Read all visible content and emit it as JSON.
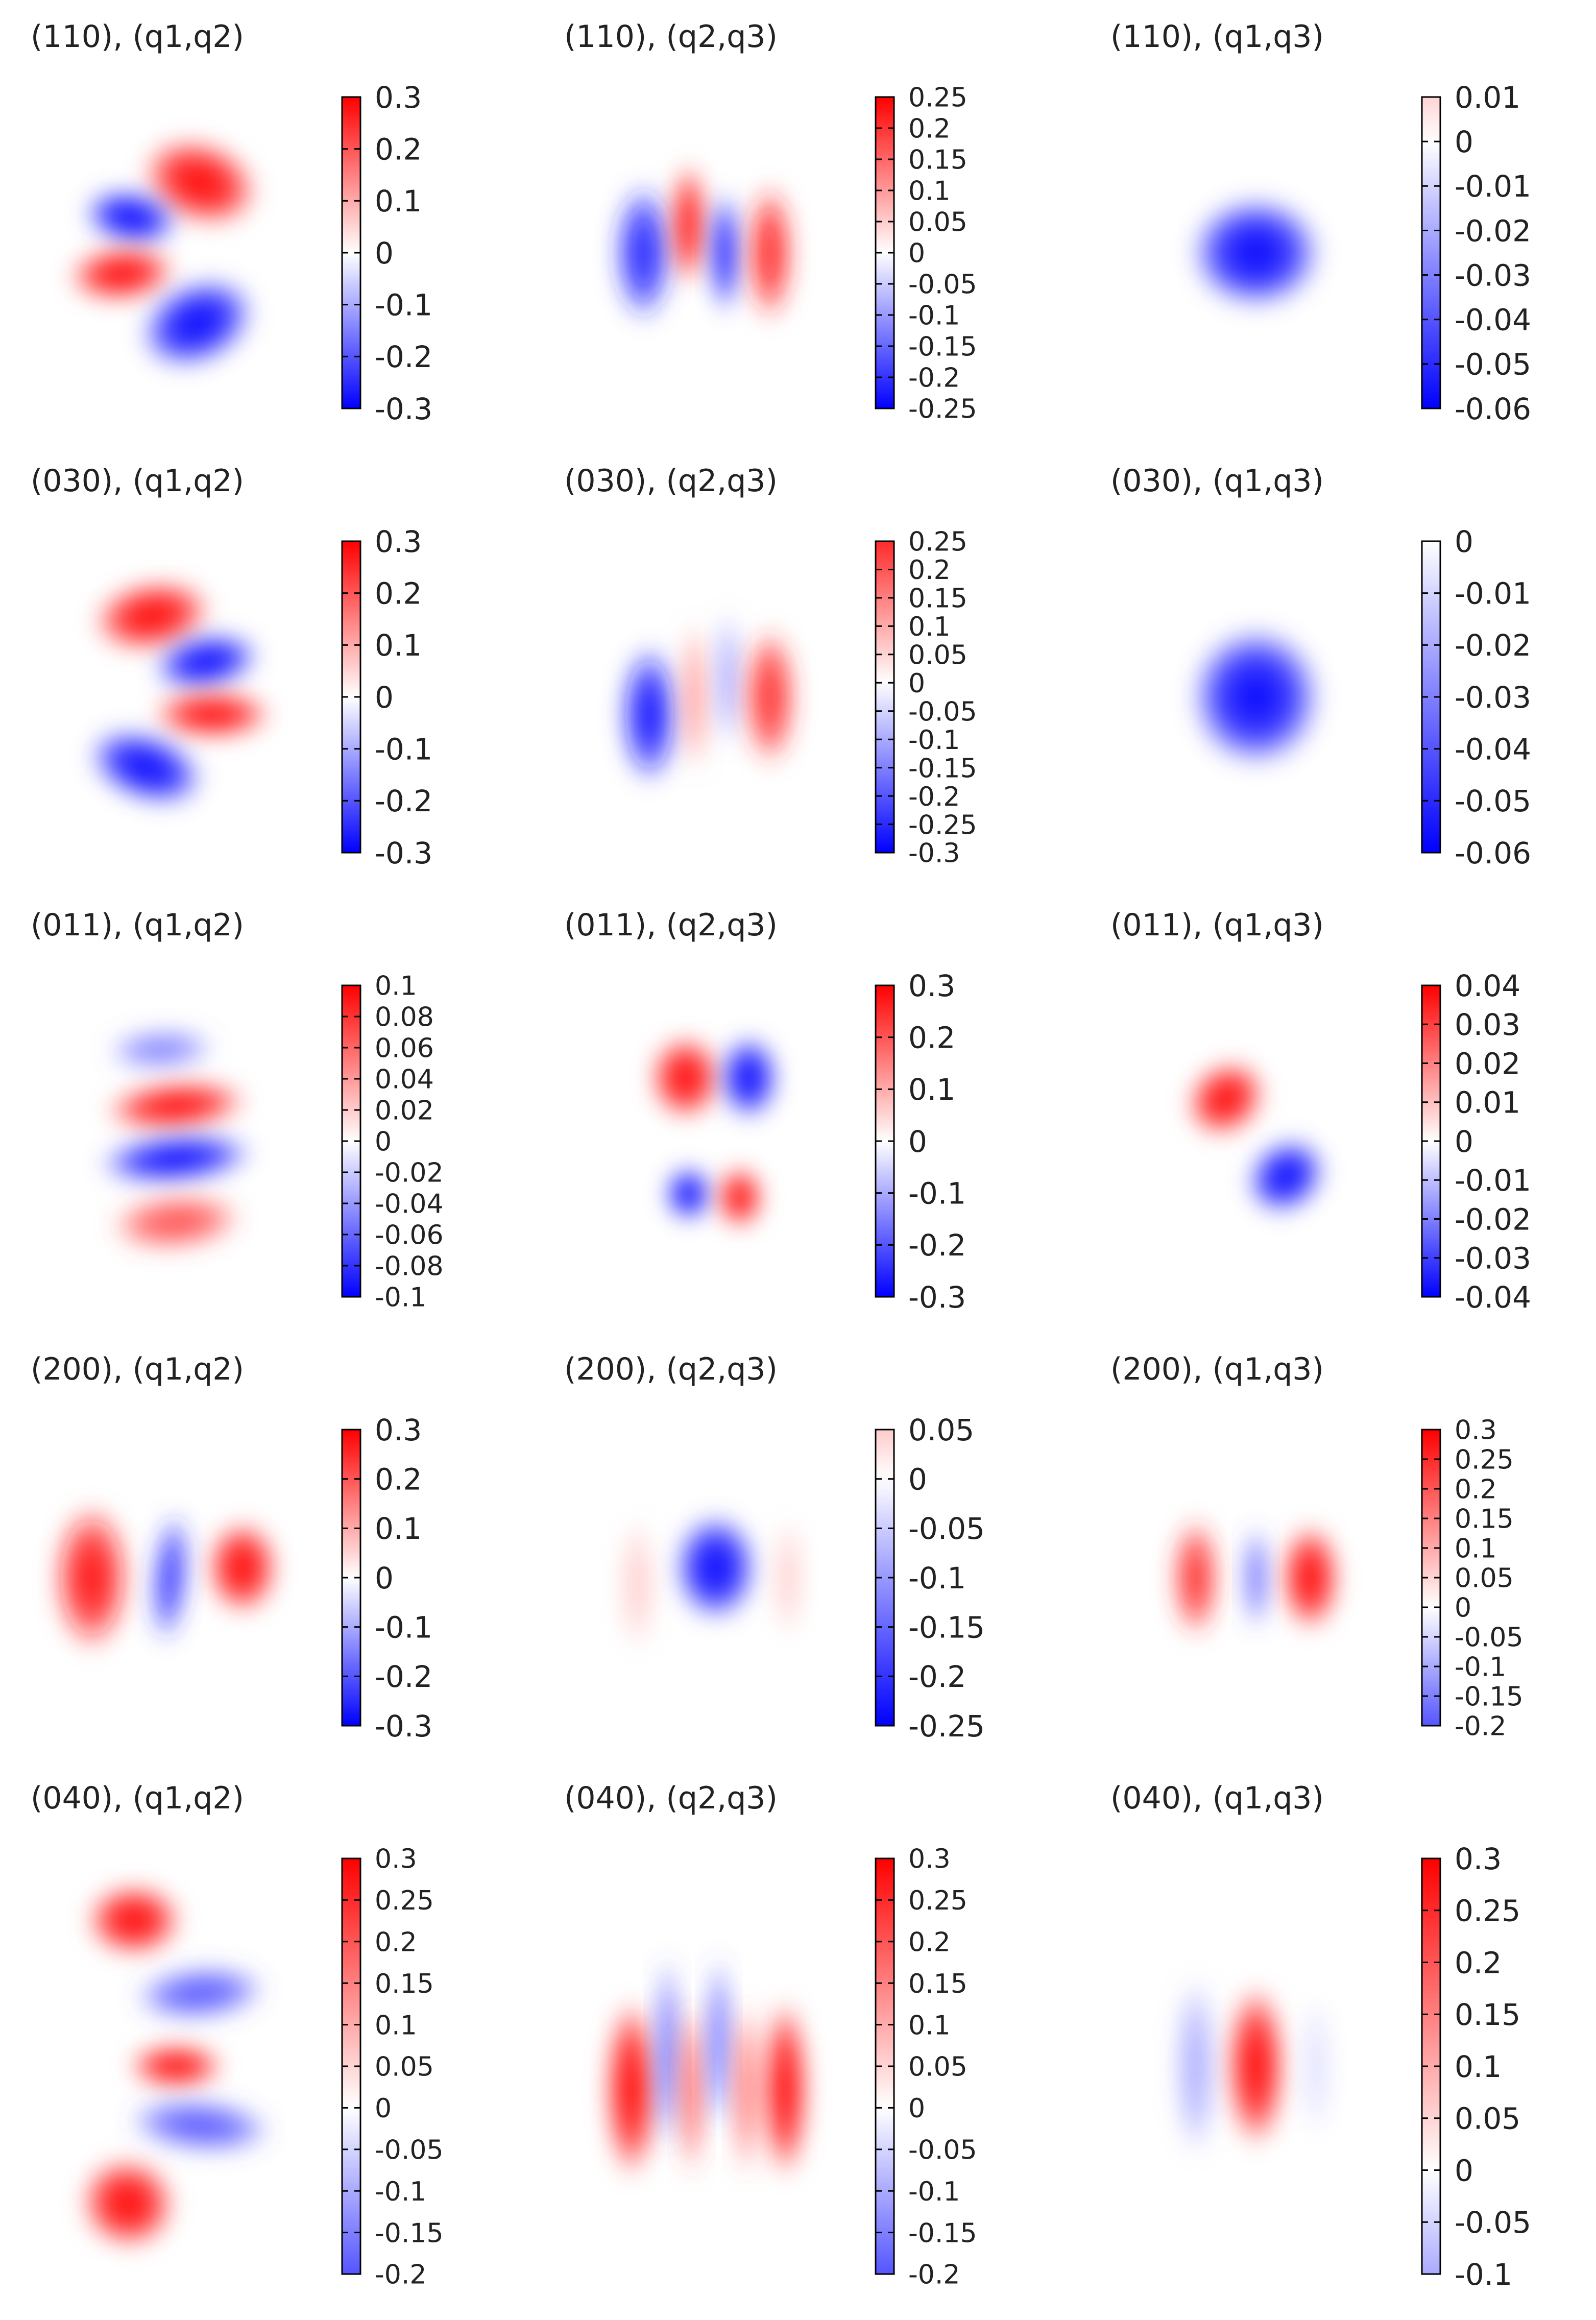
{
  "chart_data": [
    {
      "type": "heatmap",
      "title": "(110), (q1,q2)",
      "colorbar": {
        "range": [
          -0.3,
          0.3
        ],
        "ticks": [
          "0.3",
          "0.2",
          "0.1",
          "0",
          "-0.1",
          "-0.2",
          "-0.3"
        ]
      },
      "blobs": [
        {
          "x": 0.58,
          "y": 0.3,
          "sx": 0.2,
          "sy": 0.12,
          "a": 0.3,
          "rot": 20
        },
        {
          "x": 0.35,
          "y": 0.4,
          "sx": 0.16,
          "sy": 0.08,
          "a": -0.3,
          "rot": 10
        },
        {
          "x": 0.32,
          "y": 0.56,
          "sx": 0.18,
          "sy": 0.08,
          "a": 0.3,
          "rot": -5
        },
        {
          "x": 0.57,
          "y": 0.7,
          "sx": 0.2,
          "sy": 0.12,
          "a": -0.3,
          "rot": -25
        }
      ]
    },
    {
      "type": "heatmap",
      "title": "(110), (q2,q3)",
      "colorbar": {
        "range": [
          -0.25,
          0.25
        ],
        "ticks": [
          "0.25",
          "0.2",
          "0.15",
          "0.1",
          "0.05",
          "0",
          "-0.05",
          "-0.1",
          "-0.15",
          "-0.2",
          "-0.25"
        ]
      },
      "blobs": [
        {
          "x": 0.28,
          "y": 0.5,
          "sx": 0.1,
          "sy": 0.2,
          "a": -0.22,
          "rot": 0
        },
        {
          "x": 0.43,
          "y": 0.42,
          "sx": 0.06,
          "sy": 0.18,
          "a": 0.25,
          "rot": 0
        },
        {
          "x": 0.55,
          "y": 0.5,
          "sx": 0.05,
          "sy": 0.18,
          "a": -0.25,
          "rot": 0
        },
        {
          "x": 0.7,
          "y": 0.5,
          "sx": 0.08,
          "sy": 0.2,
          "a": 0.22,
          "rot": 0
        }
      ]
    },
    {
      "type": "heatmap",
      "title": "(110), (q1,q3)",
      "colorbar": {
        "range": [
          -0.06,
          0.01
        ],
        "ticks": [
          "0.01",
          "0",
          "-0.01",
          "-0.02",
          "-0.03",
          "-0.04",
          "-0.05",
          "-0.06"
        ]
      },
      "blobs": [
        {
          "x": 0.5,
          "y": 0.5,
          "sx": 0.22,
          "sy": 0.16,
          "a": -0.06,
          "rot": 0
        }
      ]
    },
    {
      "type": "heatmap",
      "title": "(030), (q1,q2)",
      "colorbar": {
        "range": [
          -0.3,
          0.3
        ],
        "ticks": [
          "0.3",
          "0.2",
          "0.1",
          "0",
          "-0.1",
          "-0.2",
          "-0.3"
        ]
      },
      "blobs": [
        {
          "x": 0.42,
          "y": 0.27,
          "sx": 0.2,
          "sy": 0.1,
          "a": 0.3,
          "rot": -10
        },
        {
          "x": 0.6,
          "y": 0.4,
          "sx": 0.18,
          "sy": 0.08,
          "a": -0.3,
          "rot": -10
        },
        {
          "x": 0.62,
          "y": 0.55,
          "sx": 0.2,
          "sy": 0.07,
          "a": 0.3,
          "rot": 0
        },
        {
          "x": 0.4,
          "y": 0.7,
          "sx": 0.2,
          "sy": 0.1,
          "a": -0.3,
          "rot": 20
        }
      ]
    },
    {
      "type": "heatmap",
      "title": "(030), (q2,q3)",
      "colorbar": {
        "range": [
          -0.3,
          0.25
        ],
        "ticks": [
          "0.25",
          "0.2",
          "0.15",
          "0.1",
          "0.05",
          "0",
          "-0.05",
          "-0.1",
          "-0.15",
          "-0.2",
          "-0.25",
          "-0.3"
        ]
      },
      "blobs": [
        {
          "x": 0.3,
          "y": 0.55,
          "sx": 0.1,
          "sy": 0.2,
          "a": -0.28,
          "rot": 0
        },
        {
          "x": 0.45,
          "y": 0.5,
          "sx": 0.05,
          "sy": 0.22,
          "a": 0.12,
          "rot": 0
        },
        {
          "x": 0.56,
          "y": 0.45,
          "sx": 0.04,
          "sy": 0.2,
          "a": -0.12,
          "rot": 0
        },
        {
          "x": 0.7,
          "y": 0.5,
          "sx": 0.09,
          "sy": 0.2,
          "a": 0.25,
          "rot": 0
        }
      ]
    },
    {
      "type": "heatmap",
      "title": "(030), (q1,q3)",
      "colorbar": {
        "range": [
          -0.06,
          0
        ],
        "ticks": [
          "0",
          "-0.01",
          "-0.02",
          "-0.03",
          "-0.04",
          "-0.05",
          "-0.06"
        ]
      },
      "blobs": [
        {
          "x": 0.5,
          "y": 0.5,
          "sx": 0.22,
          "sy": 0.2,
          "a": -0.06,
          "rot": 0
        }
      ]
    },
    {
      "type": "heatmap",
      "title": "(011), (q1,q2)",
      "colorbar": {
        "range": [
          -0.1,
          0.1
        ],
        "ticks": [
          "0.1",
          "0.08",
          "0.06",
          "0.04",
          "0.02",
          "0",
          "-0.02",
          "-0.04",
          "-0.06",
          "-0.08",
          "-0.1"
        ]
      },
      "blobs": [
        {
          "x": 0.45,
          "y": 0.24,
          "sx": 0.18,
          "sy": 0.06,
          "a": -0.05,
          "rot": -3
        },
        {
          "x": 0.5,
          "y": 0.4,
          "sx": 0.24,
          "sy": 0.07,
          "a": 0.1,
          "rot": -5
        },
        {
          "x": 0.5,
          "y": 0.55,
          "sx": 0.26,
          "sy": 0.07,
          "a": -0.1,
          "rot": -5
        },
        {
          "x": 0.5,
          "y": 0.73,
          "sx": 0.22,
          "sy": 0.08,
          "a": 0.07,
          "rot": -5
        }
      ]
    },
    {
      "type": "heatmap",
      "title": "(011), (q2,q3)",
      "colorbar": {
        "range": [
          -0.3,
          0.3
        ],
        "ticks": [
          "0.3",
          "0.2",
          "0.1",
          "0",
          "-0.1",
          "-0.2",
          "-0.3"
        ]
      },
      "blobs": [
        {
          "x": 0.42,
          "y": 0.32,
          "sx": 0.12,
          "sy": 0.12,
          "a": 0.3,
          "rot": 0
        },
        {
          "x": 0.63,
          "y": 0.32,
          "sx": 0.1,
          "sy": 0.12,
          "a": -0.3,
          "rot": 0
        },
        {
          "x": 0.43,
          "y": 0.65,
          "sx": 0.08,
          "sy": 0.08,
          "a": -0.3,
          "rot": 0
        },
        {
          "x": 0.6,
          "y": 0.66,
          "sx": 0.08,
          "sy": 0.09,
          "a": 0.3,
          "rot": 0
        }
      ]
    },
    {
      "type": "heatmap",
      "title": "(011), (q1,q3)",
      "colorbar": {
        "range": [
          -0.04,
          0.04
        ],
        "ticks": [
          "0.04",
          "0.03",
          "0.02",
          "0.01",
          "0",
          "-0.01",
          "-0.02",
          "-0.03",
          "-0.04"
        ]
      },
      "blobs": [
        {
          "x": 0.4,
          "y": 0.38,
          "sx": 0.14,
          "sy": 0.1,
          "a": 0.04,
          "rot": -40
        },
        {
          "x": 0.6,
          "y": 0.6,
          "sx": 0.14,
          "sy": 0.1,
          "a": -0.04,
          "rot": -40
        }
      ]
    },
    {
      "type": "heatmap",
      "title": "(200), (q1,q2)",
      "colorbar": {
        "range": [
          -0.3,
          0.3
        ],
        "ticks": [
          "0.3",
          "0.2",
          "0.1",
          "0",
          "-0.1",
          "-0.2",
          "-0.3"
        ]
      },
      "blobs": [
        {
          "x": 0.22,
          "y": 0.5,
          "sx": 0.13,
          "sy": 0.22,
          "a": 0.28,
          "rot": 0
        },
        {
          "x": 0.48,
          "y": 0.5,
          "sx": 0.06,
          "sy": 0.2,
          "a": -0.25,
          "rot": 5
        },
        {
          "x": 0.72,
          "y": 0.47,
          "sx": 0.12,
          "sy": 0.14,
          "a": 0.3,
          "rot": 0
        }
      ]
    },
    {
      "type": "heatmap",
      "title": "(200), (q2,q3)",
      "colorbar": {
        "range": [
          -0.25,
          0.05
        ],
        "ticks": [
          "0.05",
          "0",
          "-0.05",
          "-0.1",
          "-0.15",
          "-0.2",
          "-0.25"
        ]
      },
      "blobs": [
        {
          "x": 0.26,
          "y": 0.52,
          "sx": 0.06,
          "sy": 0.2,
          "a": 0.05,
          "rot": 0
        },
        {
          "x": 0.52,
          "y": 0.47,
          "sx": 0.14,
          "sy": 0.16,
          "a": -0.25,
          "rot": 0
        },
        {
          "x": 0.76,
          "y": 0.5,
          "sx": 0.05,
          "sy": 0.18,
          "a": 0.05,
          "rot": 0
        }
      ]
    },
    {
      "type": "heatmap",
      "title": "(200), (q1,q3)",
      "colorbar": {
        "range": [
          -0.2,
          0.3
        ],
        "ticks": [
          "0.3",
          "0.25",
          "0.2",
          "0.15",
          "0.1",
          "0.05",
          "0",
          "-0.05",
          "-0.1",
          "-0.15",
          "-0.2"
        ]
      },
      "blobs": [
        {
          "x": 0.3,
          "y": 0.5,
          "sx": 0.08,
          "sy": 0.18,
          "a": 0.25,
          "rot": 0
        },
        {
          "x": 0.5,
          "y": 0.5,
          "sx": 0.04,
          "sy": 0.16,
          "a": -0.2,
          "rot": 0
        },
        {
          "x": 0.68,
          "y": 0.5,
          "sx": 0.1,
          "sy": 0.16,
          "a": 0.3,
          "rot": 0
        }
      ]
    },
    {
      "type": "heatmap",
      "title": "(040), (q1,q2)",
      "colorbar": {
        "range": [
          -0.2,
          0.3
        ],
        "ticks": [
          "0.3",
          "0.25",
          "0.2",
          "0.15",
          "0.1",
          "0.05",
          "0",
          "-0.05",
          "-0.1",
          "-0.15",
          "-0.2"
        ]
      },
      "blobs": [
        {
          "x": 0.36,
          "y": 0.18,
          "sx": 0.16,
          "sy": 0.08,
          "a": 0.3,
          "rot": 0
        },
        {
          "x": 0.58,
          "y": 0.34,
          "sx": 0.22,
          "sy": 0.06,
          "a": -0.2,
          "rot": -5
        },
        {
          "x": 0.5,
          "y": 0.5,
          "sx": 0.16,
          "sy": 0.05,
          "a": 0.3,
          "rot": 0
        },
        {
          "x": 0.58,
          "y": 0.63,
          "sx": 0.24,
          "sy": 0.06,
          "a": -0.2,
          "rot": 5
        },
        {
          "x": 0.34,
          "y": 0.8,
          "sx": 0.16,
          "sy": 0.1,
          "a": 0.3,
          "rot": 20
        }
      ]
    },
    {
      "type": "heatmap",
      "title": "(040), (q2,q3)",
      "colorbar": {
        "range": [
          -0.2,
          0.3
        ],
        "ticks": [
          "0.3",
          "0.25",
          "0.2",
          "0.15",
          "0.1",
          "0.05",
          "0",
          "-0.05",
          "-0.1",
          "-0.15",
          "-0.2"
        ]
      },
      "blobs": [
        {
          "x": 0.24,
          "y": 0.55,
          "sx": 0.09,
          "sy": 0.2,
          "a": 0.3,
          "rot": 0
        },
        {
          "x": 0.36,
          "y": 0.47,
          "sx": 0.04,
          "sy": 0.22,
          "a": -0.2,
          "rot": 0
        },
        {
          "x": 0.44,
          "y": 0.55,
          "sx": 0.04,
          "sy": 0.2,
          "a": 0.22,
          "rot": 0
        },
        {
          "x": 0.53,
          "y": 0.45,
          "sx": 0.04,
          "sy": 0.2,
          "a": -0.2,
          "rot": 0
        },
        {
          "x": 0.62,
          "y": 0.55,
          "sx": 0.04,
          "sy": 0.2,
          "a": 0.2,
          "rot": 0
        },
        {
          "x": 0.75,
          "y": 0.55,
          "sx": 0.08,
          "sy": 0.2,
          "a": 0.3,
          "rot": 0
        }
      ]
    },
    {
      "type": "heatmap",
      "title": "(040), (q1,q3)",
      "colorbar": {
        "range": [
          -0.1,
          0.3
        ],
        "ticks": [
          "0.3",
          "0.25",
          "0.2",
          "0.15",
          "0.1",
          "0.05",
          "0",
          "-0.05",
          "-0.1"
        ]
      },
      "blobs": [
        {
          "x": 0.3,
          "y": 0.5,
          "sx": 0.07,
          "sy": 0.2,
          "a": -0.1,
          "rot": 0
        },
        {
          "x": 0.5,
          "y": 0.5,
          "sx": 0.1,
          "sy": 0.18,
          "a": 0.3,
          "rot": 0
        },
        {
          "x": 0.7,
          "y": 0.5,
          "sx": 0.05,
          "sy": 0.16,
          "a": -0.04,
          "rot": 0
        }
      ]
    }
  ]
}
